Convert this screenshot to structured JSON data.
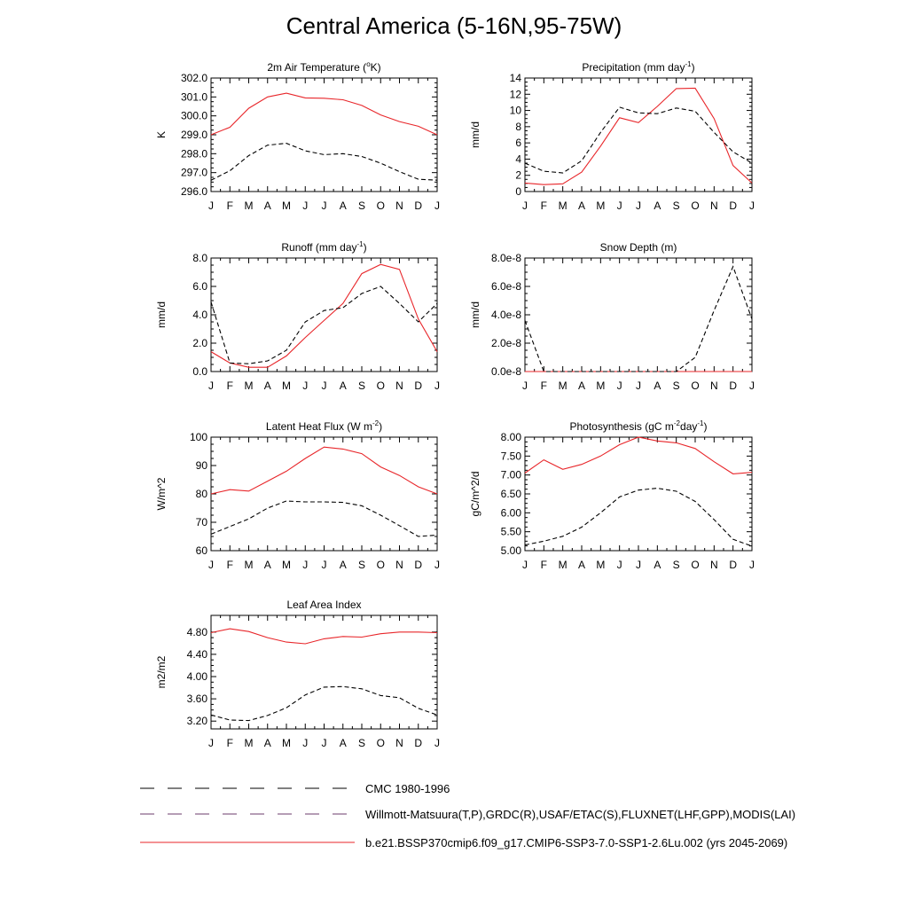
{
  "page_title": "Central America (5-16N,95-75W)",
  "months": [
    "J",
    "F",
    "M",
    "A",
    "M",
    "J",
    "J",
    "A",
    "S",
    "O",
    "N",
    "D",
    "J"
  ],
  "colors": {
    "model": "#e8262a",
    "obs": "#000000"
  },
  "chart_data": [
    {
      "id": "tsa",
      "type": "line",
      "title": "2m Air Temperature (°K)",
      "title_parts": {
        "pre": "2m Air Temperature (",
        "sup": "o",
        "post": "K)"
      },
      "ylabel": "K",
      "ylim": [
        296.0,
        302.0
      ],
      "yticks": [
        "296.0",
        "297.0",
        "298.0",
        "299.0",
        "300.0",
        "301.0",
        "302.0"
      ],
      "categories": [
        "J",
        "F",
        "M",
        "A",
        "M",
        "J",
        "J",
        "A",
        "S",
        "O",
        "N",
        "D",
        "J"
      ],
      "series": [
        {
          "style": "solid",
          "color": "#e8262a",
          "values": [
            299.0,
            299.4,
            300.4,
            301.0,
            301.2,
            300.95,
            300.93,
            300.85,
            300.55,
            300.05,
            299.7,
            299.45,
            299.0
          ]
        },
        {
          "style": "dashed",
          "color": "#000000",
          "values": [
            296.6,
            297.1,
            297.9,
            298.45,
            298.55,
            298.15,
            297.95,
            298.0,
            297.85,
            297.5,
            297.05,
            296.65,
            296.6
          ]
        }
      ]
    },
    {
      "id": "prect",
      "type": "line",
      "title": "Precipitation (mm day-1)",
      "title_parts": {
        "pre": "Precipitation (mm day",
        "sup": "-1",
        "post": ")"
      },
      "ylabel": "mm/d",
      "ylim": [
        0,
        14
      ],
      "yticks": [
        "0",
        "2",
        "4",
        "6",
        "8",
        "10",
        "12",
        "14"
      ],
      "categories": [
        "J",
        "F",
        "M",
        "A",
        "M",
        "J",
        "J",
        "A",
        "S",
        "O",
        "N",
        "D",
        "J"
      ],
      "series": [
        {
          "style": "solid",
          "color": "#e8262a",
          "values": [
            1.05,
            0.85,
            0.95,
            2.4,
            5.6,
            9.1,
            8.5,
            10.5,
            12.7,
            12.75,
            9.0,
            3.2,
            1.05
          ]
        },
        {
          "style": "dashed",
          "color": "#000000",
          "values": [
            3.5,
            2.5,
            2.3,
            3.8,
            7.3,
            10.4,
            9.7,
            9.6,
            10.3,
            9.9,
            7.3,
            4.9,
            3.5
          ]
        }
      ]
    },
    {
      "id": "runoff",
      "type": "line",
      "title": "Runoff (mm day-1)",
      "title_parts": {
        "pre": "Runoff (mm day",
        "sup": "-1",
        "post": ")"
      },
      "ylabel": "mm/d",
      "ylim": [
        0,
        8
      ],
      "yticks": [
        "0.0",
        "2.0",
        "4.0",
        "6.0",
        "8.0"
      ],
      "categories": [
        "J",
        "F",
        "M",
        "A",
        "M",
        "J",
        "J",
        "A",
        "S",
        "O",
        "N",
        "D",
        "J"
      ],
      "series": [
        {
          "style": "solid",
          "color": "#e8262a",
          "values": [
            1.4,
            0.6,
            0.3,
            0.3,
            1.1,
            2.4,
            3.6,
            4.8,
            6.9,
            7.55,
            7.2,
            3.7,
            1.4
          ]
        },
        {
          "style": "dashed",
          "color": "#000000",
          "values": [
            4.9,
            0.6,
            0.55,
            0.75,
            1.5,
            3.5,
            4.3,
            4.5,
            5.5,
            6.0,
            4.8,
            3.5,
            4.8
          ]
        }
      ]
    },
    {
      "id": "snowdp",
      "type": "line",
      "title": "Snow Depth (m)",
      "title_parts": {
        "pre": "Snow Depth (m)",
        "sup": "",
        "post": ""
      },
      "ylabel": "mm/d",
      "ylim": [
        0,
        8e-08
      ],
      "yticks": [
        "0.0e-8",
        "2.0e-8",
        "4.0e-8",
        "6.0e-8",
        "8.0e-8"
      ],
      "categories": [
        "J",
        "F",
        "M",
        "A",
        "M",
        "J",
        "J",
        "A",
        "S",
        "O",
        "N",
        "D",
        "J"
      ],
      "series": [
        {
          "style": "solid",
          "color": "#e8262a",
          "values": [
            0,
            0,
            0,
            0,
            0,
            0,
            0,
            0,
            0,
            0,
            0,
            0,
            0
          ]
        },
        {
          "style": "dashed",
          "color": "#000000",
          "values": [
            3.6e-08,
            0,
            0,
            0,
            0,
            0,
            0,
            0,
            0,
            1e-08,
            4.3e-08,
            7.4e-08,
            3.7e-08
          ]
        }
      ]
    },
    {
      "id": "lhf",
      "type": "line",
      "title": "Latent Heat Flux (W m-2)",
      "title_parts": {
        "pre": "Latent Heat Flux (W m",
        "sup": "-2",
        "post": ")"
      },
      "ylabel": "W/m^2",
      "ylim": [
        60,
        100
      ],
      "yticks": [
        "60",
        "70",
        "80",
        "90",
        "100"
      ],
      "categories": [
        "J",
        "F",
        "M",
        "A",
        "M",
        "J",
        "J",
        "A",
        "S",
        "O",
        "N",
        "D",
        "J"
      ],
      "series": [
        {
          "style": "solid",
          "color": "#e8262a",
          "values": [
            80.0,
            81.5,
            81.0,
            84.5,
            88.0,
            92.5,
            96.5,
            95.8,
            94.2,
            89.5,
            86.5,
            82.5,
            80.0
          ]
        },
        {
          "style": "dashed",
          "color": "#000000",
          "values": [
            65.8,
            68.5,
            71.2,
            75.0,
            77.5,
            77.2,
            77.2,
            77.0,
            75.8,
            72.5,
            68.8,
            65.0,
            65.5
          ]
        }
      ]
    },
    {
      "id": "gpp",
      "type": "line",
      "title": "Photosynthesis (gC m-2day-1)",
      "title_parts": {
        "pre": "Photosynthesis (gC m",
        "sup": "-2",
        "post": "day",
        "sup2": "-1",
        "post2": ")"
      },
      "ylabel": "gC/m^2/d",
      "ylim": [
        5.0,
        8.0
      ],
      "yticks": [
        "5.00",
        "5.50",
        "6.00",
        "6.50",
        "7.00",
        "7.50",
        "8.00"
      ],
      "categories": [
        "J",
        "F",
        "M",
        "A",
        "M",
        "J",
        "J",
        "A",
        "S",
        "O",
        "N",
        "D",
        "J"
      ],
      "series": [
        {
          "style": "solid",
          "color": "#e8262a",
          "values": [
            7.05,
            7.4,
            7.15,
            7.28,
            7.5,
            7.8,
            8.0,
            7.9,
            7.85,
            7.7,
            7.35,
            7.03,
            7.07
          ]
        },
        {
          "style": "dashed",
          "color": "#000000",
          "values": [
            5.15,
            5.25,
            5.38,
            5.62,
            6.0,
            6.42,
            6.6,
            6.65,
            6.57,
            6.3,
            5.82,
            5.3,
            5.12
          ]
        }
      ]
    },
    {
      "id": "lai",
      "type": "line",
      "title": "Leaf Area Index",
      "title_parts": {
        "pre": "Leaf Area Index",
        "sup": "",
        "post": ""
      },
      "ylabel": "m2/m2",
      "ylim": [
        3.06,
        5.1
      ],
      "yticks": [
        "3.20",
        "3.60",
        "4.00",
        "4.40",
        "4.80"
      ],
      "ytick_values": [
        3.2,
        3.6,
        4.0,
        4.4,
        4.8
      ],
      "categories": [
        "J",
        "F",
        "M",
        "A",
        "M",
        "J",
        "J",
        "A",
        "S",
        "O",
        "N",
        "D",
        "J"
      ],
      "series": [
        {
          "style": "solid",
          "color": "#e8262a",
          "values": [
            4.79,
            4.86,
            4.81,
            4.7,
            4.62,
            4.59,
            4.68,
            4.72,
            4.71,
            4.77,
            4.8,
            4.8,
            4.79
          ]
        },
        {
          "style": "dashed",
          "color": "#000000",
          "values": [
            3.31,
            3.22,
            3.21,
            3.3,
            3.44,
            3.67,
            3.81,
            3.82,
            3.78,
            3.66,
            3.62,
            3.43,
            3.31
          ]
        }
      ]
    }
  ],
  "legend": [
    {
      "label": "CMC 1980-1996",
      "style": "dashed",
      "color": "#000000"
    },
    {
      "label": "Willmott-Matsuura(T,P),GRDC(R),USAF/ETAC(S),FLUXNET(LHF,GPP),MODIS(LAI)",
      "style": "dashed",
      "color": "#000000"
    },
    {
      "label": "b.e21.BSSP370cmip6.f09_g17.CMIP6-SSP3-7.0-SSP1-2.6Lu.002 (yrs 2045-2069)",
      "style": "solid",
      "color": "#e8262a"
    }
  ]
}
